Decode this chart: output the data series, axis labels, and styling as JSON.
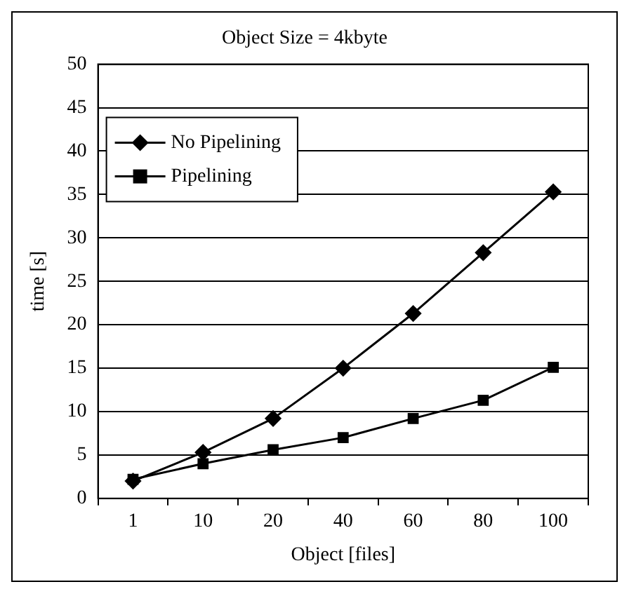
{
  "chart_data": {
    "type": "line",
    "title": "Object Size = 4kbyte",
    "xlabel": "Object [files]",
    "ylabel": "time [s]",
    "categories": [
      "1",
      "10",
      "20",
      "40",
      "60",
      "80",
      "100"
    ],
    "series": [
      {
        "name": "No Pipelining",
        "color": "#000000",
        "marker": "diamond",
        "values": [
          2,
          5.3,
          9.2,
          15,
          21.3,
          28.3,
          35.3
        ]
      },
      {
        "name": "Pipelining",
        "color": "#000000",
        "marker": "square",
        "values": [
          2.2,
          4,
          5.6,
          7,
          9.2,
          11.3,
          15.1
        ]
      }
    ],
    "ylim": [
      0,
      50
    ],
    "yticks": [
      0,
      5,
      10,
      15,
      20,
      25,
      30,
      35,
      40,
      45,
      50
    ],
    "grid": "y",
    "legend": "top left",
    "line_style": "solid"
  }
}
